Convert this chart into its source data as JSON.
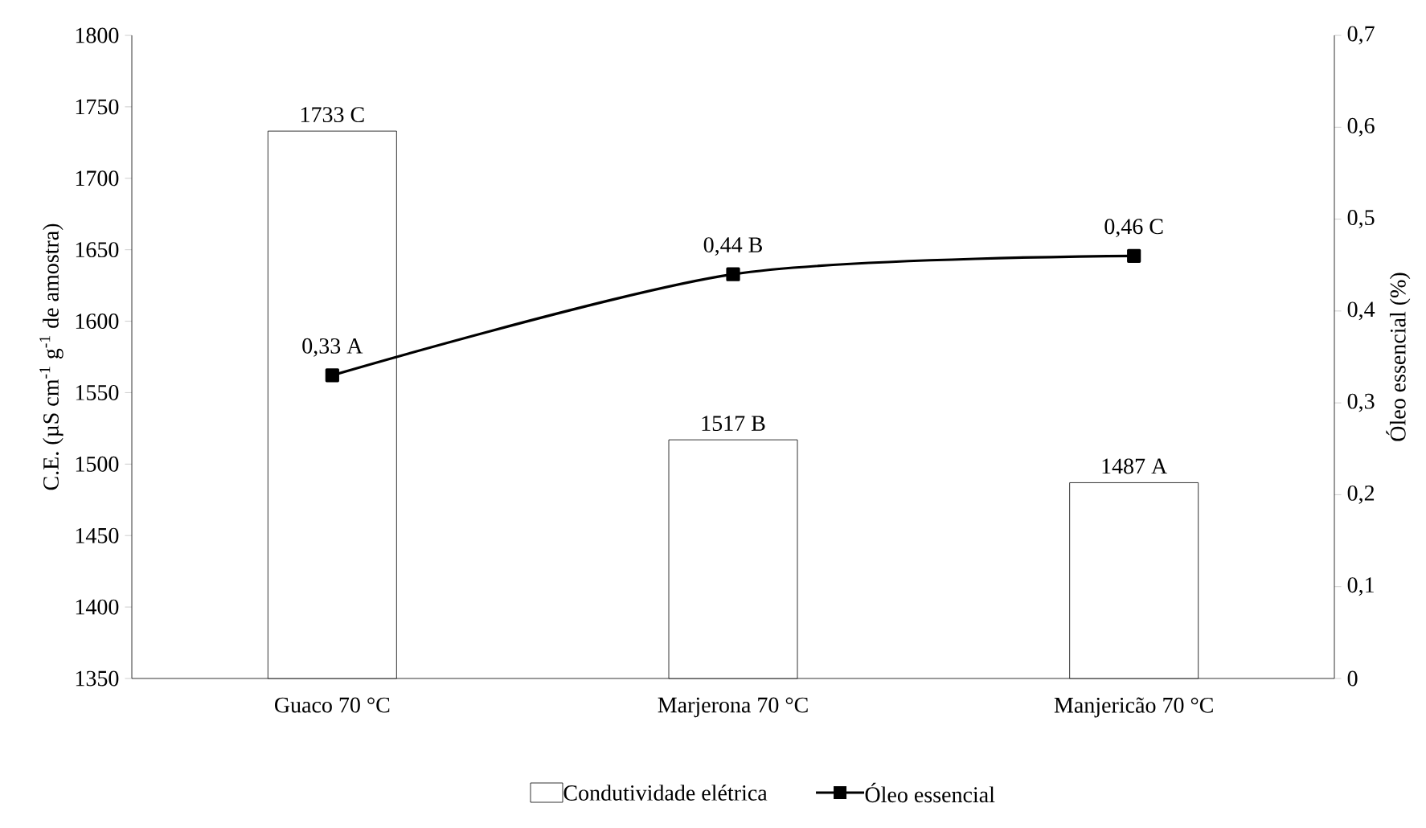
{
  "chart_data": {
    "type": "bar",
    "categories": [
      "Guaco 70 °C",
      "Marjerona 70 °C",
      "Manjericão 70 °C"
    ],
    "ylabel": "C.E.  (µS cm$^{-1}$ g$^{-1}$ de amostra)",
    "y2label": "Óleo essencial (%)",
    "ylim": [
      1350,
      1800
    ],
    "yticks": [
      1350,
      1400,
      1450,
      1500,
      1550,
      1600,
      1650,
      1700,
      1750,
      1800
    ],
    "y2lim": [
      0,
      0.7
    ],
    "y2ticks": [
      0,
      {
        "value": 0.1,
        "label": "0,1"
      },
      {
        "value": 0.2,
        "label": "0,2"
      },
      {
        "value": 0.3,
        "label": "0,3"
      },
      {
        "value": 0.4,
        "label": "0,4"
      },
      {
        "value": 0.5,
        "label": "0,5"
      },
      {
        "value": 0.6,
        "label": "0,6"
      },
      {
        "value": 0.7,
        "label": "0,7"
      }
    ],
    "series": [
      {
        "name": "Condutividade elétrica",
        "color": "#ffffff",
        "values": [
          1733,
          1517,
          1487
        ],
        "value_labels": [
          "1733 C",
          "1517 B",
          "1487 A"
        ]
      },
      {
        "name": "Óleo essencial",
        "type": "line",
        "axis": "y2",
        "color": "#000000",
        "marker": "square",
        "line_style": "solid",
        "values": [
          0.33,
          0.44,
          0.46
        ],
        "value_labels": [
          "0,33 A",
          "0,44 B",
          "0,46 C"
        ]
      }
    ],
    "legend": "bottom"
  }
}
